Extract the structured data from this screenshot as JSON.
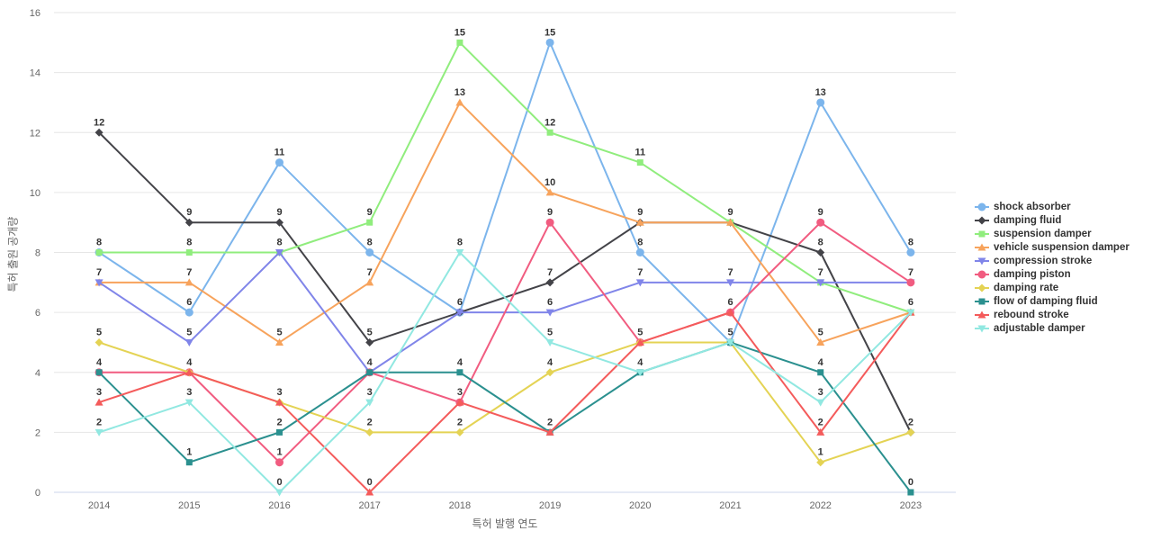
{
  "chart_data": {
    "type": "line",
    "title": "",
    "xlabel": "특허 발행 연도",
    "ylabel": "특허 출원 공개량",
    "categories": [
      "2014",
      "2015",
      "2016",
      "2017",
      "2018",
      "2019",
      "2020",
      "2021",
      "2022",
      "2023"
    ],
    "ylim": [
      0,
      16
    ],
    "y_ticks": [
      0,
      2,
      4,
      6,
      8,
      10,
      12,
      14,
      16
    ],
    "grid": "horizontal-only",
    "legend_position": "right",
    "data_labels_shown": true,
    "series": [
      {
        "name": "shock absorber",
        "color": "#7cb5ec",
        "marker": "circle",
        "values": [
          8,
          6,
          11,
          8,
          6,
          15,
          8,
          5,
          13,
          8
        ]
      },
      {
        "name": "damping fluid",
        "color": "#434348",
        "marker": "diamond",
        "values": [
          12,
          9,
          9,
          5,
          6,
          7,
          9,
          9,
          8,
          2
        ]
      },
      {
        "name": "suspension damper",
        "color": "#90ed7d",
        "marker": "square",
        "values": [
          8,
          8,
          8,
          9,
          15,
          12,
          11,
          9,
          7,
          6
        ]
      },
      {
        "name": "vehicle suspension damper",
        "color": "#f7a35c",
        "marker": "triangle",
        "values": [
          7,
          7,
          5,
          7,
          13,
          10,
          9,
          9,
          5,
          6
        ]
      },
      {
        "name": "compression stroke",
        "color": "#8085e9",
        "marker": "triangle-down",
        "values": [
          7,
          5,
          8,
          4,
          6,
          6,
          7,
          7,
          7,
          7
        ]
      },
      {
        "name": "damping piston",
        "color": "#f15c80",
        "marker": "circle",
        "values": [
          4,
          4,
          1,
          4,
          3,
          9,
          5,
          6,
          9,
          7
        ]
      },
      {
        "name": "damping rate",
        "color": "#e4d354",
        "marker": "diamond",
        "values": [
          5,
          4,
          3,
          2,
          2,
          4,
          5,
          5,
          1,
          2
        ]
      },
      {
        "name": "flow of damping fluid",
        "color": "#2b908f",
        "marker": "square",
        "values": [
          4,
          1,
          2,
          4,
          4,
          2,
          4,
          5,
          4,
          0
        ]
      },
      {
        "name": "rebound stroke",
        "color": "#f45b5b",
        "marker": "triangle",
        "values": [
          3,
          4,
          3,
          0,
          3,
          2,
          5,
          6,
          2,
          6
        ]
      },
      {
        "name": "adjustable damper",
        "color": "#91e8e1",
        "marker": "triangle-down",
        "values": [
          2,
          3,
          0,
          3,
          8,
          5,
          4,
          5,
          3,
          6
        ]
      }
    ]
  },
  "style_colors": {
    "background": "#ffffff",
    "gridline": "#e6e6e6",
    "axis_line": "#ccd6eb",
    "tick_label": "#666666",
    "axis_title": "#666666",
    "data_label": "#333333",
    "legend_text": "#333333"
  }
}
